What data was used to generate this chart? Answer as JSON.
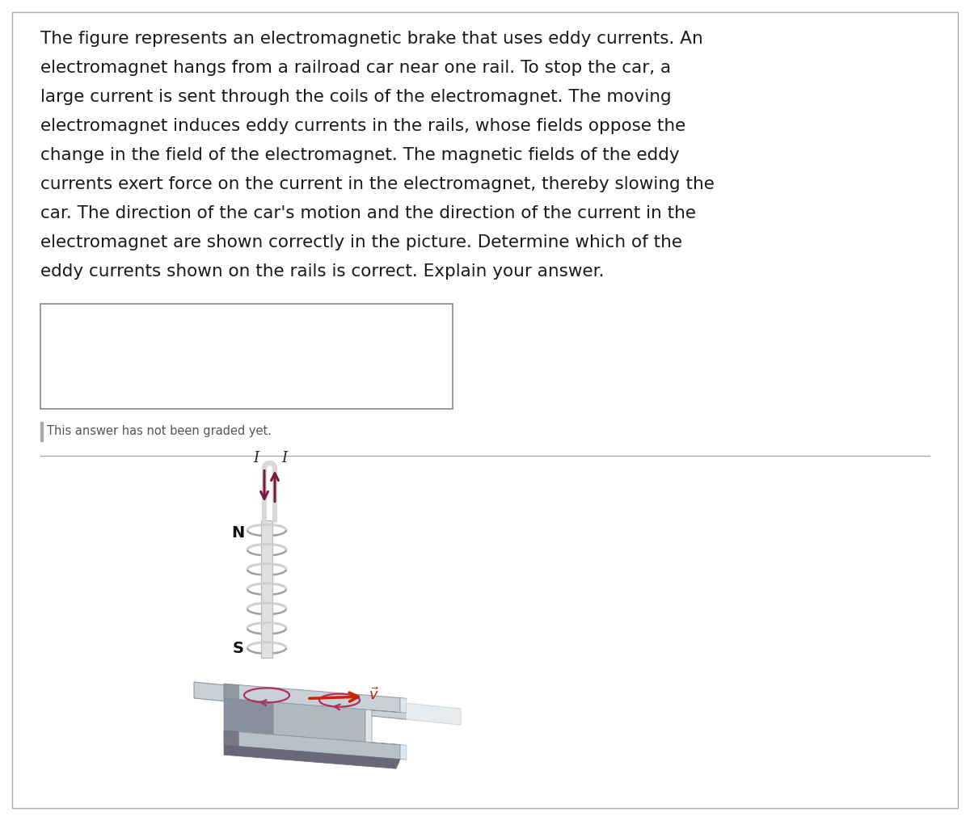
{
  "bg_color": "#ffffff",
  "text_color": "#1a1a1a",
  "text_lines": [
    "The figure represents an electromagnetic brake that uses eddy currents. An",
    "electromagnet hangs from a railroad car near one rail. To stop the car, a",
    "large current is sent through the coils of the electromagnet. The moving",
    "electromagnet induces eddy currents in the rails, whose fields oppose the",
    "change in the field of the electromagnet. The magnetic fields of the eddy",
    "currents exert force on the current in the electromagnet, thereby slowing the",
    "car. The direction of the car's motion and the direction of the current in the",
    "electromagnet are shown correctly in the picture. Determine which of the",
    "eddy currents shown on the rails is correct. Explain your answer."
  ],
  "answer_placeholder": "This answer has not been graded yet.",
  "label_N": "N",
  "label_S": "S",
  "label_I": "I",
  "arrow_current_color": "#7a1840",
  "arrow_v_color": "#cc2200",
  "eddy_color": "#b03060",
  "coil_color": "#d0d0d0",
  "coil_shadow_color": "#a0a0a0",
  "core_color": "#e0e0e0",
  "core_edge_color": "#b8b8b8",
  "wire_color": "#d8d8d8",
  "outer_border_color": "#aaaaaa",
  "answer_box_border": "#888888",
  "graded_bar_color": "#aaaaaa",
  "graded_text_color": "#555555",
  "separator_color": "#aaaaaa",
  "text_fontsize": 15.5,
  "label_fontsize": 14,
  "current_label_fontsize": 13,
  "n_coils": 7
}
